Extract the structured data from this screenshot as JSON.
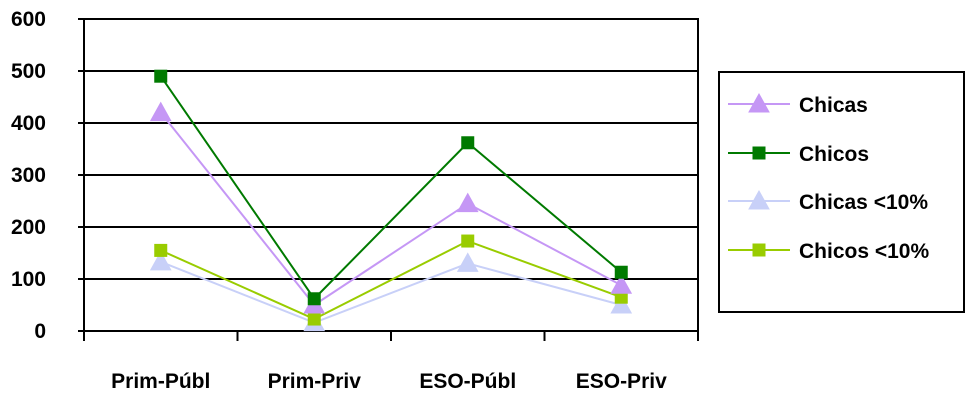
{
  "chart_data": {
    "type": "line",
    "categories": [
      "Prim-Públ",
      "Prim-Priv",
      "ESO-Públ",
      "ESO-Priv"
    ],
    "ylim": [
      0,
      600
    ],
    "yticks": [
      0,
      100,
      200,
      300,
      400,
      500,
      600
    ],
    "grid": "horizontal",
    "legend_position": "right",
    "series": [
      {
        "name": "Chicas",
        "color": "#c597f5",
        "marker": "triangle",
        "values": [
          420,
          50,
          245,
          88
        ]
      },
      {
        "name": "Chicos",
        "color": "#007a00",
        "marker": "square",
        "values": [
          490,
          62,
          362,
          113
        ]
      },
      {
        "name": "Chicas <10%",
        "color": "#c8d0f8",
        "marker": "triangle",
        "values": [
          133,
          16,
          130,
          50
        ]
      },
      {
        "name": "Chicos <10%",
        "color": "#99cc00",
        "marker": "square",
        "values": [
          155,
          23,
          173,
          65
        ]
      }
    ]
  }
}
